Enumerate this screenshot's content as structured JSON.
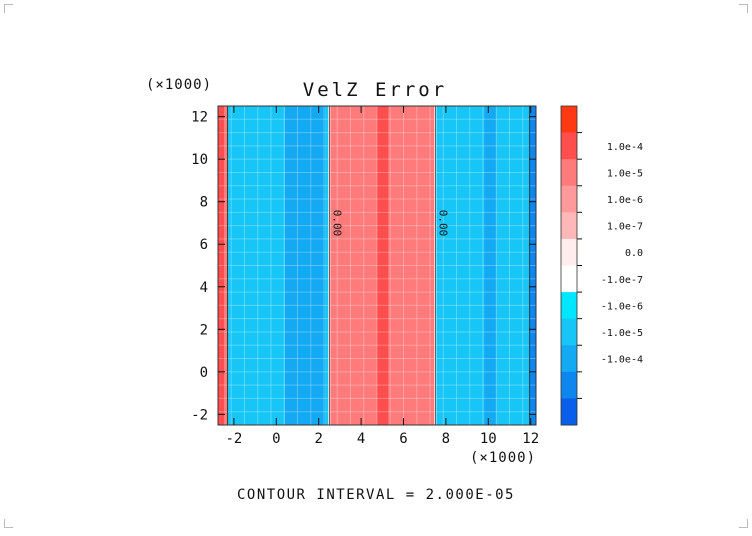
{
  "chart_data": {
    "type": "heatmap",
    "title": "VelZ Error",
    "x_multiplier_label": "(×1000)",
    "y_multiplier_label": "(×1000)",
    "xlim": [
      -2.75,
      12.25
    ],
    "ylim": [
      -2.5,
      12.5
    ],
    "x_ticks": [
      -2,
      0,
      2,
      4,
      6,
      8,
      10,
      12
    ],
    "y_ticks": [
      -2,
      0,
      2,
      4,
      6,
      8,
      10,
      12
    ],
    "footer": "CONTOUR INTERVAL = 2.000E-05",
    "colorbar": {
      "levels": [
        {
          "label": "",
          "color": "#ff3a12"
        },
        {
          "label": "1.0e-4",
          "color": "#ff4e4e"
        },
        {
          "label": "1.0e-5",
          "color": "#ff7b7b"
        },
        {
          "label": "1.0e-6",
          "color": "#ff9a9a"
        },
        {
          "label": "1.0e-7",
          "color": "#ffb8b8"
        },
        {
          "label": "0.0",
          "color": "#ffecec"
        },
        {
          "label": "-1.0e-7",
          "color": "#ffffff"
        },
        {
          "label": "-1.0e-6",
          "color": "#00e6ff"
        },
        {
          "label": "-1.0e-5",
          "color": "#17c6f7"
        },
        {
          "label": "-1.0e-4",
          "color": "#14a9f3"
        },
        {
          "label": "",
          "color": "#0d86ee"
        },
        {
          "label": "",
          "color": "#0a5fea"
        }
      ]
    },
    "bands": [
      {
        "x0": -2.75,
        "x1": -2.45,
        "color": "#ff4e4e"
      },
      {
        "x0": -2.45,
        "x1": -2.3,
        "color": "#ff7b7b"
      },
      {
        "x0": -2.3,
        "x1": 0.4,
        "color": "#17c6f7"
      },
      {
        "x0": 0.4,
        "x1": 2.3,
        "color": "#14a9f3"
      },
      {
        "x0": 2.3,
        "x1": 2.45,
        "color": "#17c6f7"
      },
      {
        "x0": 2.45,
        "x1": 2.55,
        "color": "#ffffff"
      },
      {
        "x0": 2.55,
        "x1": 4.75,
        "color": "#ff7b7b"
      },
      {
        "x0": 4.75,
        "x1": 5.3,
        "color": "#ff4e4e"
      },
      {
        "x0": 5.3,
        "x1": 7.45,
        "color": "#ff7b7b"
      },
      {
        "x0": 7.45,
        "x1": 7.55,
        "color": "#ffffff"
      },
      {
        "x0": 7.55,
        "x1": 9.8,
        "color": "#17c6f7"
      },
      {
        "x0": 9.8,
        "x1": 10.4,
        "color": "#14a9f3"
      },
      {
        "x0": 10.4,
        "x1": 11.95,
        "color": "#17c6f7"
      },
      {
        "x0": 11.95,
        "x1": 12.25,
        "color": "#0d86ee"
      }
    ],
    "contour_labels": [
      {
        "x": 2.5,
        "y": 7.0,
        "text": "0.00"
      },
      {
        "x": 7.5,
        "y": 7.0,
        "text": "0.00"
      }
    ]
  }
}
